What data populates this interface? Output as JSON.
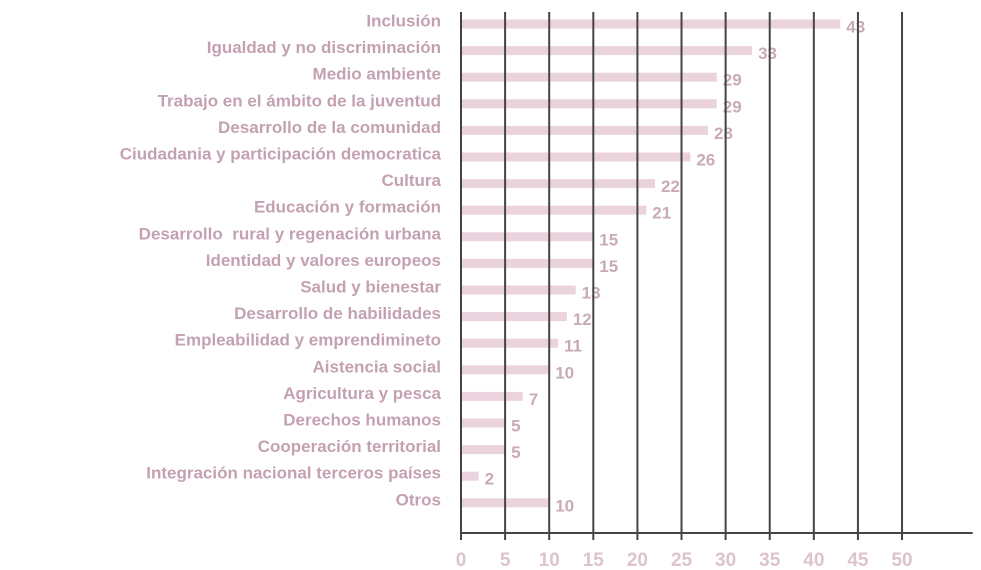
{
  "chart_data": {
    "type": "barh",
    "categories": [
      "Inclusión",
      "Igualdad y no discriminación",
      "Medio ambiente",
      "Trabajo en el ámbito de la juventud",
      "Desarrollo de la comunidad",
      "Ciudadania y participación democratica",
      "Cultura",
      "Educación y formación",
      "Desarrollo  rural y regenación urbana",
      "Identidad y valores europeos",
      "Salud y bienestar",
      "Desarrollo de habilidades",
      "Empleabilidad y emprendimineto",
      "Aistencia social",
      "Agricultura y pesca",
      "Derechos humanos",
      "Cooperación territorial",
      "Integración nacional terceros países",
      "Otros"
    ],
    "values": [
      43,
      33,
      29,
      29,
      28,
      26,
      22,
      21,
      15,
      15,
      13,
      12,
      11,
      10,
      7,
      5,
      5,
      2,
      10
    ],
    "color": "#ebd3de",
    "xlim": [
      0,
      58
    ],
    "xticks": [
      0,
      5,
      10,
      15,
      20,
      25,
      30,
      35,
      40,
      45,
      50
    ],
    "grid": true
  }
}
